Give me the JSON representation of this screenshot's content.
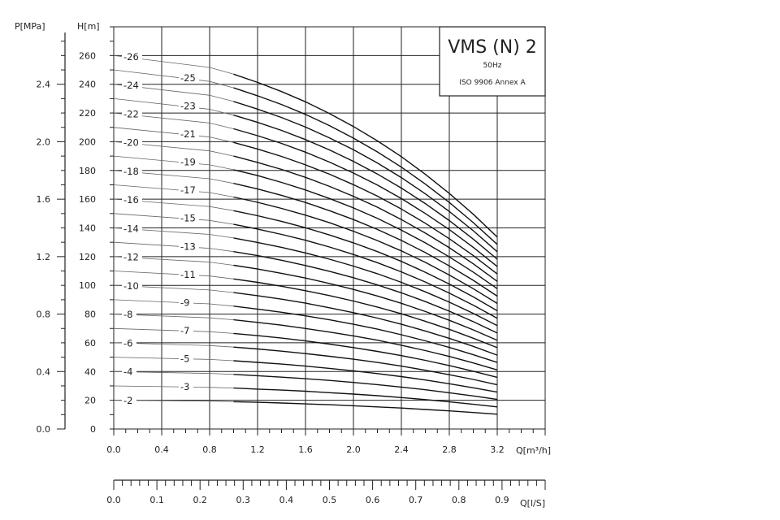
{
  "chart_data": {
    "type": "line",
    "title": "VMS (N) 2",
    "subtitle": "50Hz",
    "standard": "ISO 9906 Annex A",
    "ylabel": "H[m]",
    "ylabel_secondary": "P[MPa]",
    "xlabel": "Q[m³/h]",
    "xlabel_secondary": "Q[l/S]",
    "xlim": [
      0,
      3.6
    ],
    "ylim": [
      0,
      280
    ],
    "y2lim": [
      0,
      2.8
    ],
    "x2lim": [
      0,
      1.0
    ],
    "grid": true,
    "x_ticks": [
      "0.0",
      "0.4",
      "0.8",
      "1.2",
      "1.6",
      "2.0",
      "2.4",
      "2.8",
      "3.2"
    ],
    "y_ticks": [
      "0",
      "20",
      "40",
      "60",
      "80",
      "100",
      "120",
      "140",
      "160",
      "180",
      "200",
      "220",
      "240",
      "260"
    ],
    "p_ticks": [
      "0.0",
      "0.4",
      "0.8",
      "1.2",
      "1.6",
      "2.0",
      "2.4"
    ],
    "l_ticks": [
      "0.0",
      "0.1",
      "0.2",
      "0.3",
      "0.4",
      "0.5",
      "0.6",
      "0.7",
      "0.8",
      "0.9"
    ],
    "curve_x": [
      0,
      0.8,
      1.0,
      1.2,
      1.4,
      1.6,
      1.8,
      2.0,
      2.2,
      2.4,
      2.6,
      2.8,
      3.0,
      3.2
    ],
    "series": [
      {
        "name": "-2",
        "values": [
          20,
          19.4,
          19.0,
          18.6,
          18.1,
          17.5,
          16.9,
          16.2,
          15.4,
          14.6,
          13.6,
          12.6,
          11.5,
          10.3
        ]
      },
      {
        "name": "-3",
        "values": [
          30,
          29.0,
          28.5,
          27.8,
          27.1,
          26.3,
          25.3,
          24.3,
          23.2,
          21.9,
          20.5,
          18.9,
          17.2,
          15.4
        ]
      },
      {
        "name": "-4",
        "values": [
          40,
          38.7,
          38.0,
          37.1,
          36.1,
          35.0,
          33.8,
          32.4,
          30.9,
          29.2,
          27.3,
          25.2,
          23.0,
          20.6
        ]
      },
      {
        "name": "-5",
        "values": [
          50,
          48.4,
          47.5,
          46.4,
          45.2,
          43.8,
          42.2,
          40.5,
          38.6,
          36.5,
          34.1,
          31.5,
          28.7,
          25.7
        ]
      },
      {
        "name": "-6",
        "values": [
          60,
          58.1,
          57.0,
          55.7,
          54.2,
          52.5,
          50.6,
          48.6,
          46.3,
          43.8,
          40.9,
          37.8,
          34.5,
          30.8
        ]
      },
      {
        "name": "-7",
        "values": [
          70,
          67.7,
          66.5,
          65.0,
          63.3,
          61.3,
          59.1,
          56.7,
          54.0,
          51.1,
          47.8,
          44.2,
          40.2,
          36.0
        ]
      },
      {
        "name": "-8",
        "values": [
          80,
          77.4,
          76.0,
          74.2,
          72.3,
          70.0,
          67.5,
          64.8,
          61.8,
          58.3,
          54.6,
          50.5,
          46.0,
          41.1
        ]
      },
      {
        "name": "-9",
        "values": [
          90,
          87.1,
          85.5,
          83.5,
          81.3,
          78.8,
          76.0,
          72.9,
          69.5,
          65.6,
          61.4,
          56.8,
          51.7,
          46.3
        ]
      },
      {
        "name": "-10",
        "values": [
          100,
          96.8,
          95.0,
          92.8,
          90.4,
          87.6,
          84.4,
          81.0,
          77.2,
          72.9,
          68.2,
          63.1,
          57.5,
          51.4
        ]
      },
      {
        "name": "-11",
        "values": [
          110,
          106.5,
          104.5,
          102.1,
          99.4,
          96.3,
          92.9,
          89.1,
          84.9,
          80.2,
          75.0,
          69.4,
          63.2,
          56.6
        ]
      },
      {
        "name": "-12",
        "values": [
          120,
          116.2,
          114.0,
          111.4,
          108.4,
          105.1,
          101.3,
          97.2,
          92.6,
          87.5,
          81.8,
          75.7,
          69.0,
          61.7
        ]
      },
      {
        "name": "-13",
        "values": [
          130,
          125.8,
          123.5,
          120.7,
          117.5,
          113.8,
          109.8,
          105.3,
          100.3,
          94.8,
          88.7,
          82.0,
          74.7,
          66.8
        ]
      },
      {
        "name": "-14",
        "values": [
          140,
          135.5,
          133.0,
          129.9,
          126.5,
          122.6,
          118.2,
          113.4,
          108.1,
          102.1,
          95.5,
          88.3,
          80.5,
          72.0
        ]
      },
      {
        "name": "-15",
        "values": [
          150,
          145.2,
          142.5,
          139.2,
          135.5,
          131.4,
          126.7,
          121.5,
          115.8,
          109.4,
          102.3,
          94.6,
          86.2,
          77.1
        ]
      },
      {
        "name": "-16",
        "values": [
          160,
          154.9,
          152.0,
          148.5,
          144.6,
          140.1,
          135.1,
          129.6,
          123.5,
          116.7,
          109.1,
          100.9,
          92.0,
          82.3
        ]
      },
      {
        "name": "-17",
        "values": [
          170,
          164.6,
          161.5,
          157.8,
          153.6,
          148.9,
          143.6,
          137.7,
          131.2,
          124.0,
          116.0,
          107.2,
          97.7,
          87.4
        ]
      },
      {
        "name": "-18",
        "values": [
          180,
          174.2,
          171.0,
          167.1,
          162.7,
          157.7,
          152.0,
          145.8,
          138.9,
          131.3,
          122.8,
          113.5,
          103.5,
          92.5
        ]
      },
      {
        "name": "-19",
        "values": [
          190,
          183.9,
          180.5,
          176.4,
          171.7,
          166.4,
          160.5,
          153.9,
          146.7,
          138.5,
          129.6,
          119.8,
          109.2,
          97.7
        ]
      },
      {
        "name": "-20",
        "values": [
          200,
          193.6,
          190.0,
          185.6,
          180.7,
          175.2,
          168.9,
          162.0,
          154.4,
          145.8,
          136.4,
          126.2,
          115.0,
          102.8
        ]
      },
      {
        "name": "-21",
        "values": [
          210,
          203.3,
          199.5,
          194.9,
          189.8,
          183.9,
          177.4,
          170.1,
          162.1,
          153.1,
          143.2,
          132.5,
          120.7,
          107.9
        ]
      },
      {
        "name": "-22",
        "values": [
          220,
          213.0,
          209.0,
          204.2,
          198.8,
          192.7,
          185.8,
          178.2,
          169.8,
          160.4,
          150.0,
          138.8,
          126.5,
          113.1
        ]
      },
      {
        "name": "-23",
        "values": [
          230,
          222.6,
          218.5,
          213.5,
          207.9,
          201.5,
          194.3,
          186.3,
          177.5,
          167.7,
          156.9,
          145.1,
          132.2,
          118.2
        ]
      },
      {
        "name": "-24",
        "values": [
          240,
          232.3,
          228.0,
          222.7,
          216.9,
          210.2,
          202.7,
          194.4,
          185.2,
          175.0,
          163.7,
          151.4,
          138.0,
          123.4
        ]
      },
      {
        "name": "-25",
        "values": [
          250,
          242.0,
          237.5,
          232.0,
          225.9,
          219.0,
          211.2,
          202.5,
          192.9,
          182.3,
          170.5,
          157.7,
          143.7,
          128.5
        ]
      },
      {
        "name": "-26",
        "values": [
          260,
          251.7,
          247.0,
          241.3,
          234.9,
          227.8,
          219.6,
          210.6,
          200.6,
          189.6,
          177.3,
          164.0,
          149.5,
          133.6
        ]
      }
    ]
  }
}
